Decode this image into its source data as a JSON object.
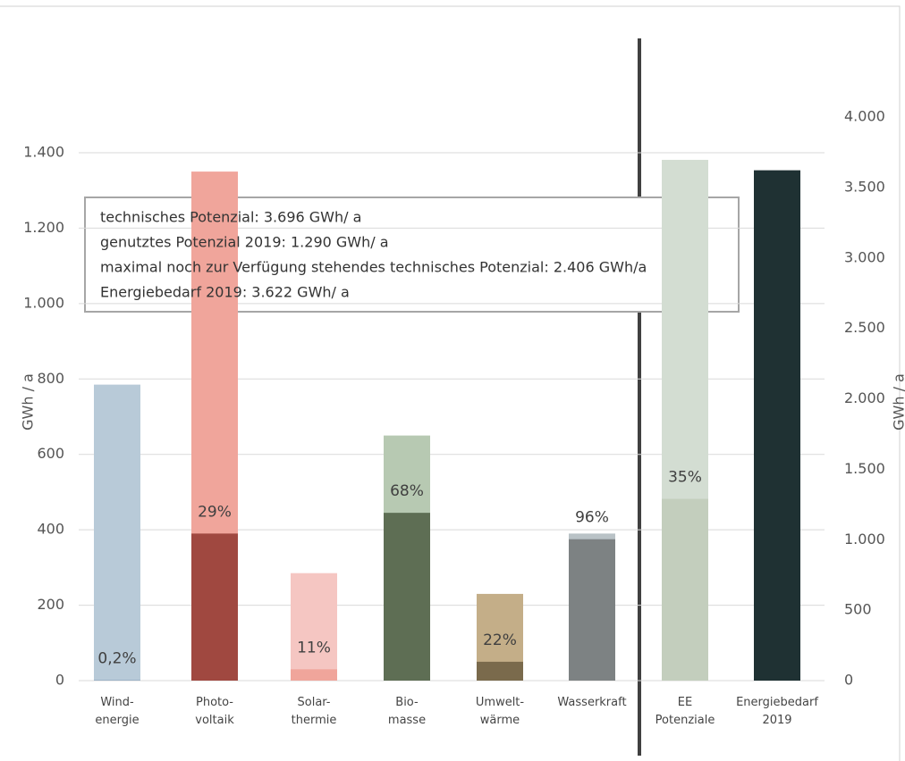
{
  "chart_data": {
    "type": "bar",
    "y_label": "GWh / a",
    "y2_label": "GWh / a",
    "categories": [
      "Wind-\nenergie",
      "Photo-\nvoltaik",
      "Solar-\nthermie",
      "Bio-\nmasse",
      "Umwelt-\nwärme",
      "Wasserkraft",
      "EE\nPotenziale",
      "Energiebedarf\n2019"
    ],
    "axis": [
      "y",
      "y",
      "y",
      "y",
      "y",
      "y",
      "y2",
      "y2"
    ],
    "series": [
      {
        "values": [
          785,
          1350,
          285,
          650,
          230,
          390,
          3696,
          3622
        ],
        "colors": [
          "#b8cad8",
          "#f0a59b",
          "#f5c6c2",
          "#b7c9b2",
          "#c4ae88",
          "#b9c2c6",
          "#d3ddd2",
          "#1f3133"
        ]
      },
      {
        "values": [
          1.6,
          390,
          30,
          445,
          50,
          375,
          1290,
          null
        ],
        "colors": [
          "#8fa8bd",
          "#a04840",
          "#f0a59b",
          "#5e6e54",
          "#7a6a4c",
          "#7d8283",
          "#c3cebd",
          "#1f3133"
        ]
      }
    ],
    "shares": {
      "values": [
        0.2,
        29,
        11,
        68,
        22,
        96,
        35,
        null
      ],
      "value_labels": [
        "0,2%",
        "29%",
        "11%",
        "68%",
        "22%",
        "96%",
        "35%",
        null
      ]
    },
    "ylim": [
      0,
      1400
    ],
    "yticks": [
      0,
      200,
      400,
      600,
      800,
      {
        "value": 1000,
        "label": "1.000"
      },
      {
        "value": 1200,
        "label": "1.200"
      },
      {
        "value": 1400,
        "label": "1.400"
      }
    ],
    "y2lim": [
      0,
      4000
    ],
    "y2ticks": [
      0,
      500,
      {
        "value": 1000,
        "label": "1.000"
      },
      {
        "value": 1500,
        "label": "1.500"
      },
      {
        "value": 2000,
        "label": "2.000"
      },
      {
        "value": 2500,
        "label": "2.500"
      },
      {
        "value": 3000,
        "label": "3.000"
      },
      {
        "value": 3500,
        "label": "3.500"
      },
      {
        "value": 4000,
        "label": "4.000"
      }
    ],
    "grid": true,
    "annotations": [
      "technisches Potenzial: 3.696 GWh/ a",
      "genutztes Potenzial 2019: 1.290 GWh/ a",
      "maximal noch zur Verfügung stehendes technisches Potenzial: 2.406 GWh/a",
      "Energiebedarf 2019: 3.622 GWh/ a"
    ]
  }
}
